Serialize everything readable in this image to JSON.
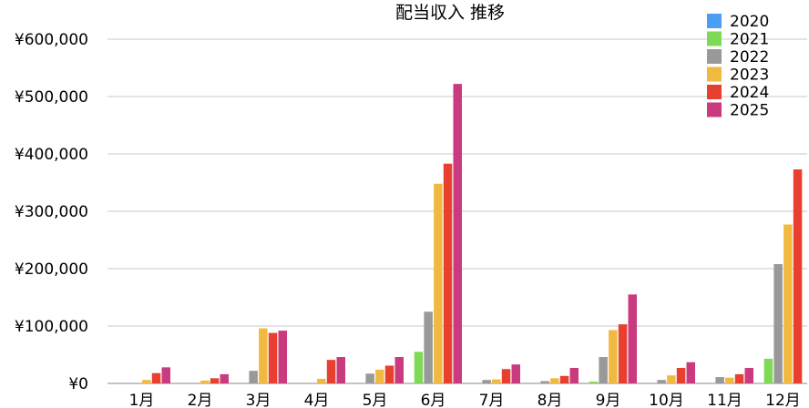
{
  "chart_data": {
    "type": "bar",
    "title": "配当収入 推移",
    "xlabel": "",
    "ylabel": "",
    "ylim": [
      0,
      600000
    ],
    "yticks": [
      0,
      100000,
      200000,
      300000,
      400000,
      500000,
      600000
    ],
    "ytick_labels": [
      "¥0",
      "¥100,000",
      "¥200,000",
      "¥300,000",
      "¥400,000",
      "¥500,000",
      "¥600,000"
    ],
    "grid": true,
    "legend_position": "top-right",
    "categories": [
      "1月",
      "2月",
      "3月",
      "4月",
      "5月",
      "6月",
      "7月",
      "8月",
      "9月",
      "10月",
      "11月",
      "12月"
    ],
    "series": [
      {
        "name": "2020",
        "color": "#4a9ff5",
        "values": [
          0,
          0,
          0,
          0,
          0,
          0,
          0,
          0,
          0,
          0,
          0,
          0
        ]
      },
      {
        "name": "2021",
        "color": "#7ed957",
        "values": [
          0,
          0,
          0,
          0,
          0,
          55000,
          0,
          0,
          3000,
          0,
          0,
          43000
        ]
      },
      {
        "name": "2022",
        "color": "#999999",
        "values": [
          0,
          0,
          22000,
          0,
          17000,
          125000,
          6000,
          4000,
          46000,
          6000,
          11000,
          208000
        ]
      },
      {
        "name": "2023",
        "color": "#f2b941",
        "values": [
          6000,
          5000,
          96000,
          8000,
          24000,
          348000,
          7000,
          9000,
          93000,
          14000,
          10000,
          277000
        ]
      },
      {
        "name": "2024",
        "color": "#e8402f",
        "values": [
          18000,
          9000,
          88000,
          41000,
          31000,
          383000,
          25000,
          13000,
          103000,
          27000,
          16000,
          373000
        ]
      },
      {
        "name": "2025",
        "color": "#c93a7e",
        "values": [
          28000,
          16000,
          92000,
          46000,
          46000,
          522000,
          33000,
          27000,
          155000,
          37000,
          27000,
          null
        ]
      }
    ]
  }
}
